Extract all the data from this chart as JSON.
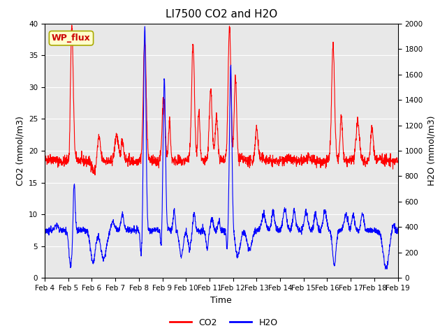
{
  "title": "LI7500 CO2 and H2O",
  "xlabel": "Time",
  "ylabel_left": "CO2 (mmol/m3)",
  "ylabel_right": "H2O (mmol/m3)",
  "ylim_left": [
    0,
    40
  ],
  "ylim_right": [
    0,
    2000
  ],
  "yticks_left": [
    0,
    5,
    10,
    15,
    20,
    25,
    30,
    35,
    40
  ],
  "yticks_right": [
    0,
    200,
    400,
    600,
    800,
    1000,
    1200,
    1400,
    1600,
    1800,
    2000
  ],
  "xtick_labels": [
    "Feb 4",
    "Feb 5",
    "Feb 6",
    "Feb 7",
    "Feb 8",
    "Feb 9",
    "Feb 10",
    "Feb 11",
    "Feb 12",
    "Feb 13",
    "Feb 14",
    "Feb 15",
    "Feb 16",
    "Feb 17",
    "Feb 18",
    "Feb 19"
  ],
  "co2_color": "#ff0000",
  "h2o_color": "#0000ff",
  "figure_facecolor": "#ffffff",
  "plot_bg_color": "#e8e8e8",
  "legend_label_co2": "CO2",
  "legend_label_h2o": "H2O",
  "annotation_text": "WP_flux",
  "annotation_bg": "#ffffcc",
  "annotation_border": "#aaaa00",
  "title_fontsize": 11,
  "axis_fontsize": 9,
  "tick_fontsize": 7.5,
  "linewidth": 0.8,
  "num_points": 2000
}
